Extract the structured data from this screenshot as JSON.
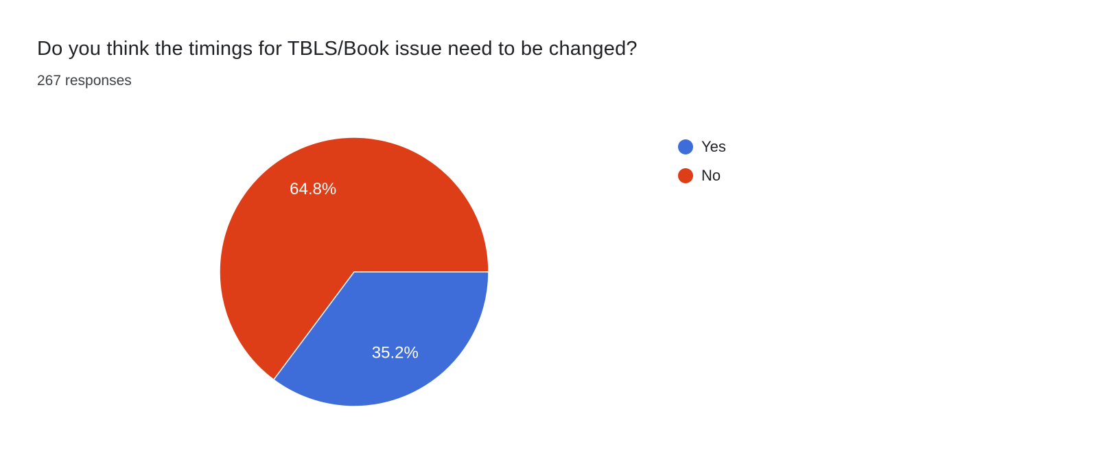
{
  "chart_data": {
    "type": "pie",
    "title": "Do you think the timings for TBLS/Book issue need to be changed?",
    "subtitle": "267 responses",
    "slices": [
      {
        "label": "Yes",
        "value": 35.2,
        "display": "35.2%",
        "color": "#3e6cd9"
      },
      {
        "label": "No",
        "value": 64.8,
        "display": "64.8%",
        "color": "#dd3d17"
      }
    ],
    "start_angle_deg": 0,
    "direction": "clockwise",
    "legend_position": "right",
    "slice_label_color": "#ffffff",
    "slice_border_color": "#ffffff"
  }
}
